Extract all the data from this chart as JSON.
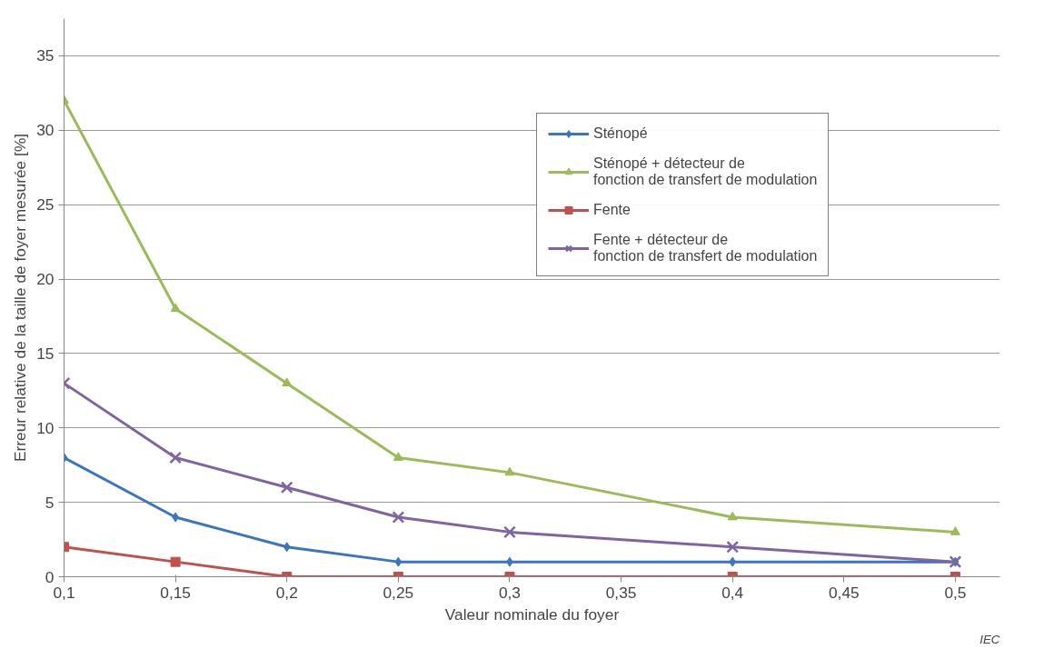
{
  "chart_data": {
    "type": "line",
    "xlabel": "Valeur nominale du foyer",
    "ylabel": "Erreur relative de la taille de foyer mesurée [%]",
    "x": [
      0.1,
      0.15,
      0.2,
      0.25,
      0.3,
      0.4,
      0.5
    ],
    "series": [
      {
        "name": "Sténopé",
        "color": "#3a75c4",
        "marker": "diamond",
        "values": [
          8,
          4,
          2,
          1,
          1,
          1,
          1
        ]
      },
      {
        "name": "Sténopé + détecteur de\nfonction de transfert de modulation",
        "color": "#9bbb59",
        "marker": "triangle",
        "values": [
          32,
          18,
          13,
          8,
          7,
          4,
          3
        ]
      },
      {
        "name": "Fente",
        "color": "#c0504d",
        "marker": "square",
        "values": [
          2,
          1,
          0,
          0,
          0,
          0,
          0
        ]
      },
      {
        "name": "Fente + détecteur de\nfonction de transfert de modulation",
        "color": "#8064a2",
        "marker": "cross",
        "values": [
          13,
          8,
          6,
          4,
          3,
          2,
          1
        ]
      }
    ],
    "xlim": [
      0.1,
      0.52
    ],
    "ylim": [
      0,
      37.5
    ],
    "xticks": [
      {
        "value": 0.1,
        "label": "0,1"
      },
      {
        "value": 0.15,
        "label": "0,15"
      },
      {
        "value": 0.2,
        "label": "0,2"
      },
      {
        "value": 0.25,
        "label": "0,25"
      },
      {
        "value": 0.3,
        "label": "0,3"
      },
      {
        "value": 0.35,
        "label": "0,35"
      },
      {
        "value": 0.4,
        "label": "0,4"
      },
      {
        "value": 0.45,
        "label": "0,45"
      },
      {
        "value": 0.5,
        "label": "0,5"
      }
    ],
    "yticks": [
      0,
      5,
      10,
      15,
      20,
      25,
      30,
      35
    ],
    "grid": "y",
    "legend": "right",
    "line_style": "solid",
    "annotations": [
      "IEC"
    ]
  }
}
